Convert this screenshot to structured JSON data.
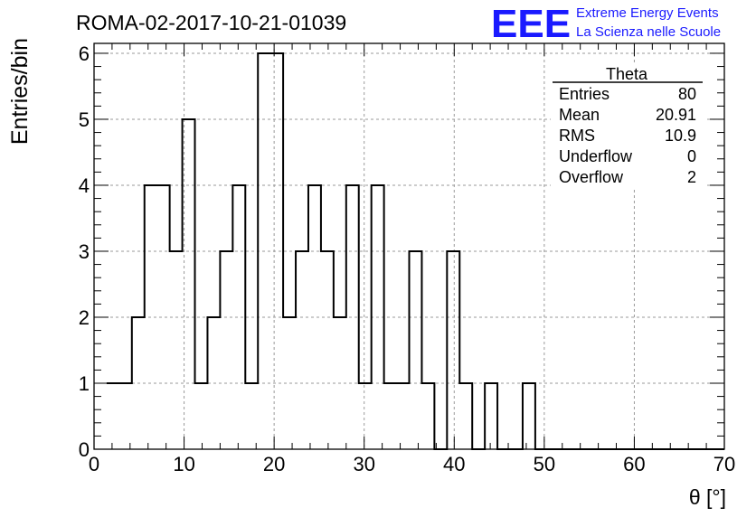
{
  "header": {
    "run_title": "ROMA-02-2017-10-21-01039",
    "logo_text": "EEE",
    "logo_line1": "Extreme Energy Events",
    "logo_line2": "La Scienza nelle Scuole"
  },
  "colors": {
    "logo": "#1a1aff",
    "histogram_line": "#000000",
    "grid": "#9a9a9a"
  },
  "stats_box": {
    "title": "Theta",
    "rows": [
      {
        "label": "Entries",
        "value": "80"
      },
      {
        "label": "Mean",
        "value": "20.91"
      },
      {
        "label": "RMS",
        "value": "10.9"
      },
      {
        "label": "Underflow",
        "value": "0"
      },
      {
        "label": "Overflow",
        "value": "2"
      }
    ]
  },
  "chart_data": {
    "type": "histogram",
    "xlabel": "θ [°]",
    "ylabel": "Entries/bin",
    "xlim": [
      0,
      70
    ],
    "ylim": [
      0,
      6.15
    ],
    "x_ticks": [
      0,
      10,
      20,
      30,
      40,
      50,
      60,
      70
    ],
    "y_ticks": [
      0,
      1,
      2,
      3,
      4,
      5,
      6
    ],
    "grid": true,
    "bin_width": 1.4,
    "bin_edges_start": 1.4,
    "values": [
      1,
      1,
      2,
      4,
      4,
      3,
      5,
      1,
      2,
      3,
      4,
      1,
      6,
      6,
      2,
      3,
      4,
      3,
      2,
      4,
      1,
      4,
      1,
      1,
      3,
      1,
      0,
      3,
      1,
      0,
      1,
      0,
      0,
      1,
      0,
      0,
      0,
      0,
      0,
      0,
      0,
      0,
      0,
      0,
      0,
      0,
      0,
      0,
      0
    ]
  }
}
